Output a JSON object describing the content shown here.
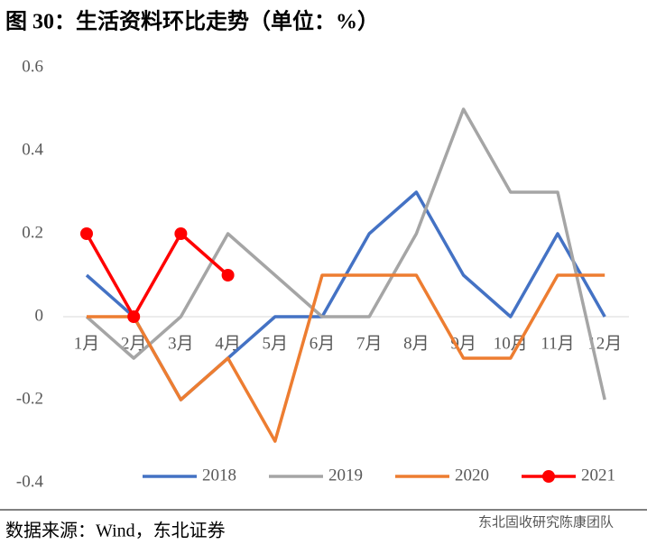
{
  "chart_data": {
    "type": "line",
    "title": "图 30：生活资料环比走势（单位：%）",
    "source": "数据来源：Wind，东北证券",
    "watermark": "东北固收研究陈康团队",
    "categories": [
      "1月",
      "2月",
      "3月",
      "4月",
      "5月",
      "6月",
      "7月",
      "8月",
      "9月",
      "10月",
      "11月",
      "12月"
    ],
    "series": [
      {
        "name": "2018",
        "color": "#4472c4",
        "values": [
          0.1,
          0,
          -0.2,
          -0.1,
          0,
          0,
          0.2,
          0.3,
          0.1,
          0,
          0.2,
          0
        ]
      },
      {
        "name": "2019",
        "color": "#a5a5a5",
        "values": [
          0,
          -0.1,
          0,
          0.2,
          0.1,
          0,
          0,
          0.2,
          0.5,
          0.3,
          0.3,
          -0.2
        ]
      },
      {
        "name": "2020",
        "color": "#ed7d31",
        "values": [
          0,
          0,
          -0.2,
          -0.1,
          -0.3,
          0.1,
          0.1,
          0.1,
          -0.1,
          -0.1,
          0.1,
          0.1
        ]
      },
      {
        "name": "2021",
        "color": "#ff0000",
        "markers": true,
        "values": [
          0.2,
          0,
          0.2,
          0.1,
          null,
          null,
          null,
          null,
          null,
          null,
          null,
          null
        ]
      }
    ],
    "ylim": [
      -0.4,
      0.6
    ],
    "yticks": [
      -0.4,
      -0.2,
      0,
      0.2,
      0.4,
      0.6
    ],
    "grid": false,
    "legend": "bottom"
  }
}
